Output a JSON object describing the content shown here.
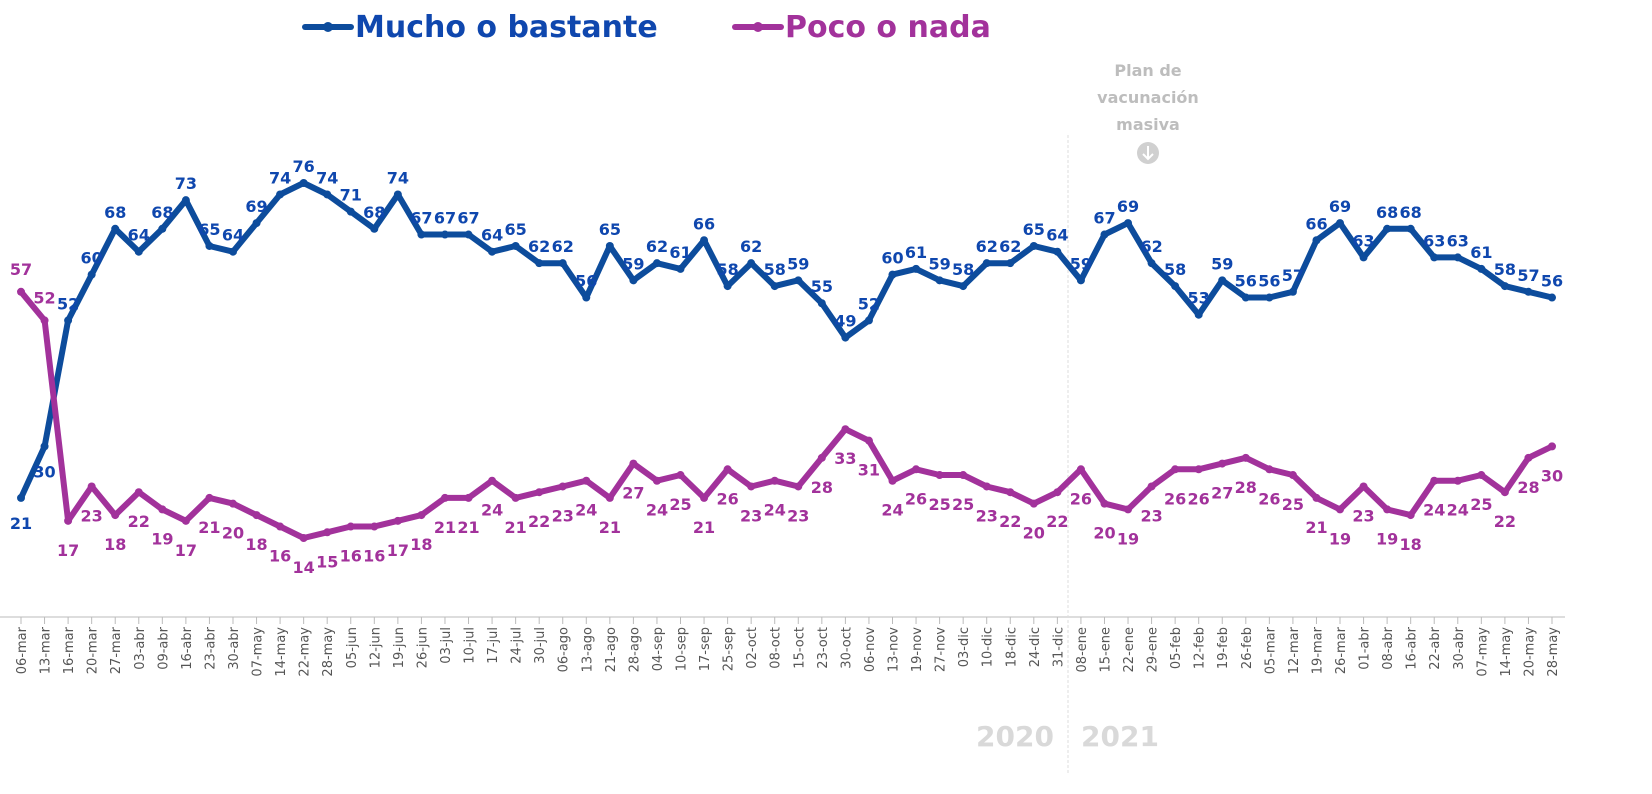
{
  "chart_data": {
    "type": "line",
    "categories": [
      "06-mar",
      "13-mar",
      "16-mar",
      "20-mar",
      "27-mar",
      "03-abr",
      "09-abr",
      "16-abr",
      "23-abr",
      "30-abr",
      "07-may",
      "14-may",
      "22-may",
      "28-may",
      "05-jun",
      "12-jun",
      "19-jun",
      "26-jun",
      "03-jul",
      "10-jul",
      "17-jul",
      "24-jul",
      "30-jul",
      "06-ago",
      "13-ago",
      "21-ago",
      "28-ago",
      "04-sep",
      "10-sep",
      "17-sep",
      "25-sep",
      "02-oct",
      "08-oct",
      "15-oct",
      "23-oct",
      "30-oct",
      "06-nov",
      "13-nov",
      "19-nov",
      "27-nov",
      "03-dic",
      "10-dic",
      "18-dic",
      "24-dic",
      "31-dic",
      "08-ene",
      "15-ene",
      "22-ene",
      "29-ene",
      "05-feb",
      "12-feb",
      "19-feb",
      "26-feb",
      "05-mar",
      "12-mar",
      "19-mar",
      "26-mar",
      "01-abr",
      "08-abr",
      "16-abr",
      "22-abr",
      "30-abr",
      "07-may",
      "14-may",
      "20-may",
      "28-may"
    ],
    "series": [
      {
        "name": "Mucho o bastante",
        "color": "#0d4c9c",
        "values": [
          21,
          30,
          52,
          60,
          68,
          64,
          68,
          73,
          65,
          64,
          69,
          74,
          76,
          74,
          71,
          68,
          74,
          67,
          67,
          67,
          64,
          65,
          62,
          62,
          56,
          65,
          59,
          62,
          61,
          66,
          58,
          62,
          58,
          59,
          55,
          49,
          52,
          60,
          61,
          59,
          58,
          62,
          62,
          65,
          64,
          59,
          67,
          69,
          62,
          58,
          53,
          59,
          56,
          56,
          57,
          66,
          69,
          63,
          68,
          68,
          63,
          63,
          61,
          58,
          57,
          56
        ]
      },
      {
        "name": "Poco o nada",
        "color": "#a2329b",
        "values": [
          57,
          52,
          17,
          23,
          18,
          22,
          19,
          17,
          21,
          20,
          18,
          16,
          14,
          15,
          16,
          16,
          17,
          18,
          21,
          21,
          24,
          21,
          22,
          23,
          24,
          21,
          27,
          24,
          25,
          21,
          26,
          23,
          24,
          23,
          28,
          33,
          31,
          24,
          26,
          25,
          25,
          23,
          22,
          20,
          22,
          26,
          20,
          19,
          23,
          26,
          26,
          27,
          28,
          26,
          25,
          21,
          19,
          23,
          19,
          18,
          24,
          24,
          25,
          22,
          28,
          30
        ]
      }
    ],
    "annotation": {
      "lines": [
        "Plan de",
        "vacunación",
        "masiva"
      ],
      "category_index": 47
    },
    "year_labels": [
      "2020",
      "2021"
    ]
  }
}
